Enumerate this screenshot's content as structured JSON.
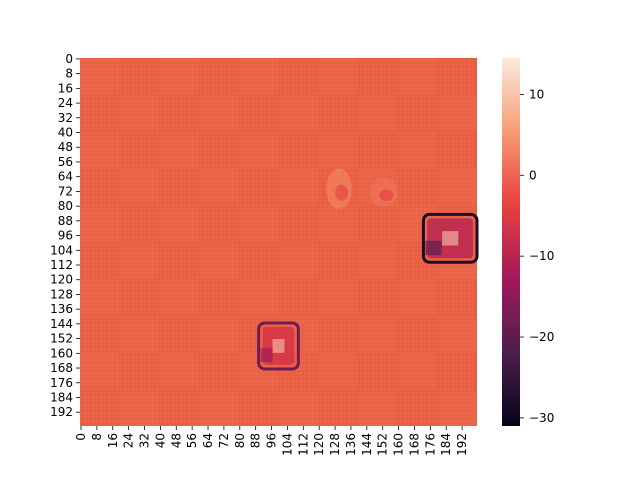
{
  "chart_data": {
    "type": "heatmap",
    "title": "",
    "xlabel": "",
    "ylabel": "",
    "grid": false,
    "colormap": "rocket",
    "colormap_stops": [
      "#03051a",
      "#4c1d4b",
      "#a11a5b",
      "#e83f3f",
      "#f69c73",
      "#faebdd"
    ],
    "background_color": "#e9623f",
    "shape": [
      200,
      200
    ],
    "vmin": -31,
    "vmax": 14.5,
    "x_ticks": [
      0,
      8,
      16,
      24,
      32,
      40,
      48,
      56,
      64,
      72,
      80,
      88,
      96,
      104,
      112,
      120,
      128,
      136,
      144,
      152,
      160,
      168,
      176,
      184,
      192
    ],
    "y_ticks": [
      0,
      8,
      16,
      24,
      32,
      40,
      48,
      56,
      64,
      72,
      80,
      88,
      96,
      104,
      112,
      120,
      128,
      136,
      144,
      152,
      160,
      168,
      176,
      184,
      192
    ],
    "colorbar_ticks": [
      10,
      0,
      -10,
      -20,
      -30
    ],
    "features": [
      {
        "name": "blob-upper-center",
        "x": [
          124,
          137
        ],
        "y": [
          60,
          82
        ],
        "value": 4
      },
      {
        "name": "blob-upper-right-faint",
        "x": [
          146,
          160
        ],
        "y": [
          65,
          81
        ],
        "value": 2
      },
      {
        "name": "blob-right",
        "x": [
          173,
          200
        ],
        "y": [
          85,
          111
        ],
        "value": -28
      },
      {
        "name": "blob-lower-center",
        "x": [
          90,
          110
        ],
        "y": [
          144,
          169
        ],
        "value": -18
      }
    ]
  }
}
